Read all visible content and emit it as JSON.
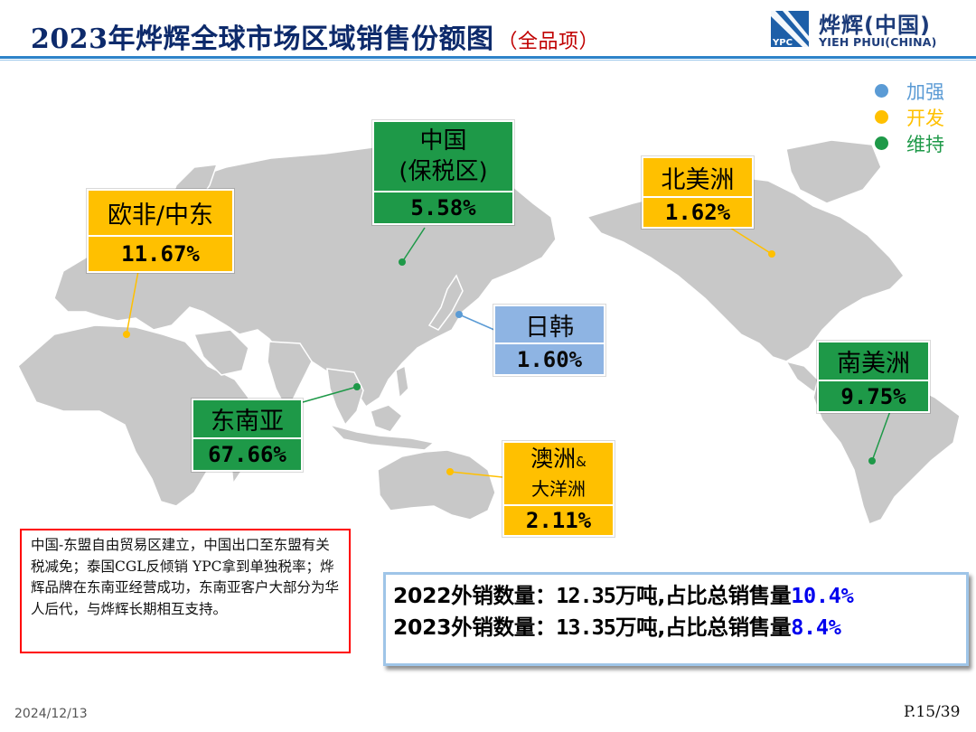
{
  "header": {
    "title": "2023年烨辉全球市场区域销售份额图",
    "subtitle": "（全品项）",
    "logo_cn": "烨辉(中国)",
    "logo_en": "YIEH PHUI(CHINA)",
    "logo_mark_text": "YPC"
  },
  "legend": [
    {
      "label": "加强",
      "color": "#5b9bd5"
    },
    {
      "label": "开发",
      "color": "#ffc000"
    },
    {
      "label": "维持",
      "color": "#1e9948"
    }
  ],
  "regions": {
    "china": {
      "name_line1": "中国",
      "name_line2": "(保税区)",
      "value": "5.58%",
      "status": "维持"
    },
    "europe_africa_me": {
      "name": "欧非/中东",
      "value": "11.67%",
      "status": "开发"
    },
    "north_america": {
      "name": "北美洲",
      "value": "1.62%",
      "status": "开发"
    },
    "japan_korea": {
      "name": "日韩",
      "value": "1.60%",
      "status": "加强"
    },
    "southeast_asia": {
      "name": "东南亚",
      "value": "67.66%",
      "status": "维持"
    },
    "south_america": {
      "name": "南美洲",
      "value": "9.75%",
      "status": "维持"
    },
    "oceania": {
      "name_line1": "澳洲",
      "name_amp": "&",
      "name_line2": "大洋洲",
      "value": "2.11%",
      "status": "开发"
    }
  },
  "note": "中国-东盟自由贸易区建立，中国出口至东盟有关税减免；泰国CGL反倾销 YPC拿到单独税率；烨辉品牌在东南亚经营成功，东南亚客户大部分为华人后代，与烨辉长期相互支持。",
  "stats": [
    {
      "prefix": "2022外销数量：",
      "amount": "12.35",
      "middle": "万吨,占比总销售量",
      "pct": "10.4%"
    },
    {
      "prefix": "2023外销数量：",
      "amount": "13.35",
      "middle": "万吨,占比总销售量",
      "pct": "8.4%"
    }
  ],
  "footer": {
    "date": "2024/12/13",
    "page": "P.15/39"
  }
}
